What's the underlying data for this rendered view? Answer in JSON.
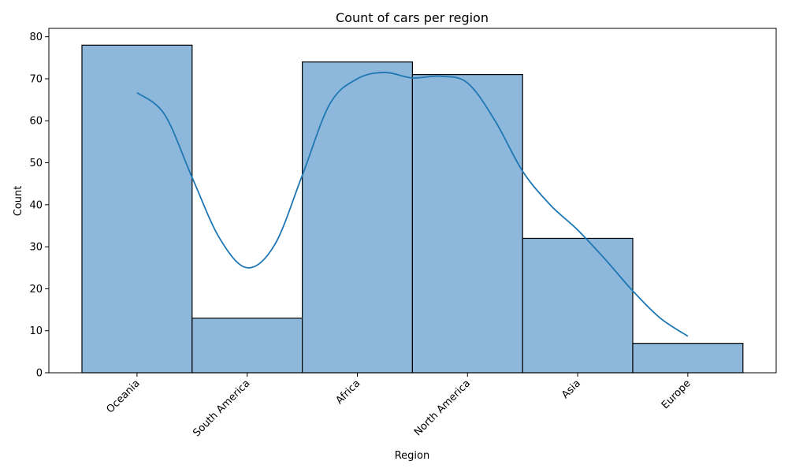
{
  "chart_data": {
    "type": "bar",
    "title": "Count of cars per region",
    "xlabel": "Region",
    "ylabel": "Count",
    "categories": [
      "Oceania",
      "South America",
      "Africa",
      "North America",
      "Asia",
      "Europe"
    ],
    "values": [
      78,
      13,
      74,
      71,
      32,
      7
    ],
    "kde": {
      "x": [
        0,
        0.25,
        0.5,
        0.75,
        1,
        1.25,
        1.5,
        1.75,
        2,
        2.25,
        2.5,
        2.75,
        3,
        3.25,
        3.5,
        3.75,
        4,
        4.25,
        4.5,
        4.75,
        5
      ],
      "y": [
        66.7,
        61.5,
        46.5,
        32.0,
        25.0,
        30.5,
        47.0,
        64.0,
        70.0,
        71.5,
        70.2,
        70.6,
        69.0,
        60.0,
        48.0,
        40.0,
        34.0,
        27.0,
        19.5,
        13.0,
        8.7
      ]
    },
    "ylim": [
      0,
      82
    ],
    "yticks": [
      0,
      10,
      20,
      30,
      40,
      50,
      60,
      70,
      80
    ],
    "grid": false,
    "colors": {
      "bar_fill": "#8db8db",
      "bar_edge": "#000000",
      "kde_line": "#1f77b4"
    }
  }
}
